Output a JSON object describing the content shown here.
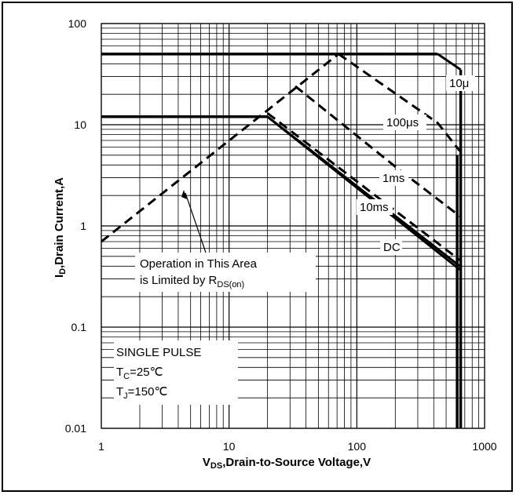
{
  "chart_data": {
    "type": "line",
    "x_scale": "log",
    "y_scale": "log",
    "xlim": [
      1,
      1000
    ],
    "ylim": [
      0.01,
      100
    ],
    "grid": true,
    "x_ticks": [
      "1",
      "10",
      "100",
      "1000"
    ],
    "y_ticks": [
      "100",
      "10",
      "1",
      "0.1",
      "0.01"
    ],
    "xlabel": {
      "sym": "V",
      "sub": "DS",
      "rest": ",Drain-to-Source Voltage,V"
    },
    "ylabel": {
      "sym": "I",
      "sub": "D",
      "rest": ",Drain Current,A"
    },
    "series": [
      {
        "name": "10μ",
        "style": "dashed",
        "x": [
          72,
          430,
          640
        ],
        "y": [
          50,
          10.4,
          5.5
        ]
      },
      {
        "name": "100μs",
        "style": "dashed",
        "x": [
          33,
          214,
          640
        ],
        "y": [
          24,
          3.6,
          1.25
        ]
      },
      {
        "name": "1ms",
        "style": "dashed",
        "x": [
          20,
          640
        ],
        "y": [
          13,
          0.46
        ]
      },
      {
        "name": "10ms",
        "style": "solid",
        "x": [
          20,
          640
        ],
        "y": [
          12,
          0.4
        ]
      },
      {
        "name": "DC",
        "style": "solid",
        "x": [
          20,
          640
        ],
        "y": [
          12,
          0.37
        ]
      },
      {
        "name": "",
        "style": "dashed",
        "x": [
          1,
          72
        ],
        "y": [
          0.7,
          50
        ]
      }
    ],
    "limits": {
      "current_pulsed_A": 50,
      "current_dc_A": 12,
      "voltage_V": 650,
      "x_vertical": [
        610,
        650
      ]
    },
    "annotations": {
      "rds_line1": "Operation in This Area",
      "rds_line2": "is Limited by R",
      "rds_sub": "DS(on)",
      "pulse": "SINGLE PULSE",
      "tc_sym": "T",
      "tc_sub": "C",
      "tc_rest": "=25℃",
      "tj_sym": "T",
      "tj_sub": "J",
      "tj_rest": "=150℃"
    }
  }
}
